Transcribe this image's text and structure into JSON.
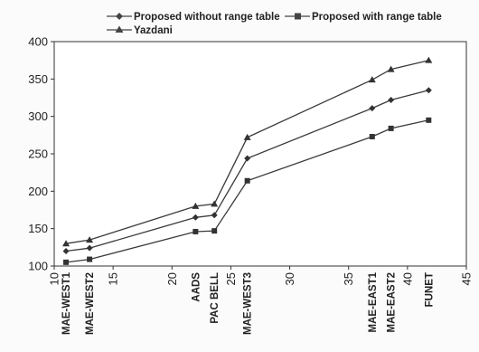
{
  "chart_data": {
    "type": "line",
    "title": "",
    "xlabel": "",
    "ylabel": "",
    "xlim": [
      10,
      45
    ],
    "ylim": [
      100,
      400
    ],
    "x_ticks": [
      10,
      15,
      20,
      25,
      30,
      35,
      40,
      45
    ],
    "y_ticks": [
      100,
      150,
      200,
      250,
      300,
      350,
      400
    ],
    "grid": false,
    "legend_position": "top",
    "site_labels": [
      {
        "x": 11,
        "label": "MAE-WEST1"
      },
      {
        "x": 13,
        "label": "MAE-WEST2"
      },
      {
        "x": 22,
        "label": "AADS"
      },
      {
        "x": 23.6,
        "label": "PAC BELL"
      },
      {
        "x": 26.4,
        "label": "MAE-WEST3"
      },
      {
        "x": 37,
        "label": "MAE-EAST1"
      },
      {
        "x": 38.6,
        "label": "MAE-EAST2"
      },
      {
        "x": 41.8,
        "label": "FUNET"
      }
    ],
    "series": [
      {
        "name": "Proposed without range table",
        "marker": "diamond",
        "x": [
          11,
          13,
          22,
          23.6,
          26.4,
          37,
          38.6,
          41.8
        ],
        "y": [
          120,
          124,
          165,
          168,
          244,
          311,
          322,
          335
        ]
      },
      {
        "name": "Proposed with range table",
        "marker": "square",
        "x": [
          11,
          13,
          22,
          23.6,
          26.4,
          37,
          38.6,
          41.8
        ],
        "y": [
          105,
          109,
          146,
          147,
          214,
          273,
          284,
          295
        ]
      },
      {
        "name": "Yazdani",
        "marker": "triangle",
        "x": [
          11,
          13,
          22,
          23.6,
          26.4,
          37,
          38.6,
          41.8
        ],
        "y": [
          130,
          135,
          180,
          183,
          272,
          349,
          363,
          375
        ]
      }
    ]
  }
}
